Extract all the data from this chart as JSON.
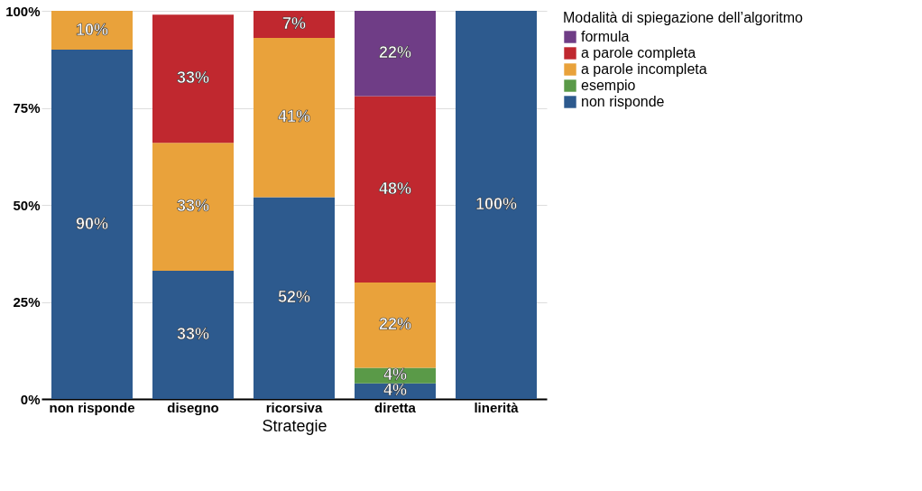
{
  "chart_data": {
    "type": "bar",
    "stacked": true,
    "xlabel": "Strategie",
    "legend_title": "Modalità di spiegazione dell’algoritmo",
    "categories": [
      "non risponde",
      "disegno",
      "ricorsiva",
      "diretta",
      "linerità"
    ],
    "series": [
      {
        "name": "non risponde",
        "color": "#2d5a8e",
        "values": [
          90,
          33,
          52,
          4,
          100
        ],
        "value_labels": [
          "90%",
          "33%",
          "52%",
          "4%",
          "100%"
        ]
      },
      {
        "name": "esempio",
        "color": "#5a9a48",
        "values": [
          null,
          null,
          null,
          4,
          null
        ],
        "value_labels": [
          null,
          null,
          null,
          "4%",
          null
        ]
      },
      {
        "name": "a parole incompleta",
        "color": "#e9a23b",
        "values": [
          10,
          33,
          41,
          22,
          null
        ],
        "value_labels": [
          "10%",
          "33%",
          "41%",
          "22%",
          null
        ]
      },
      {
        "name": "a parole completa",
        "color": "#c0282f",
        "values": [
          null,
          33,
          7,
          48,
          null
        ],
        "value_labels": [
          null,
          "33%",
          "7%",
          "48%",
          null
        ]
      },
      {
        "name": "formula",
        "color": "#6f3d86",
        "values": [
          null,
          null,
          null,
          22,
          null
        ],
        "value_labels": [
          null,
          null,
          null,
          "22%",
          null
        ]
      }
    ],
    "ylim": [
      0,
      100
    ],
    "yticks": [
      {
        "value": 0,
        "label": "0%"
      },
      {
        "value": 25,
        "label": "25%"
      },
      {
        "value": 50,
        "label": "50%"
      },
      {
        "value": 75,
        "label": "75%"
      },
      {
        "value": 100,
        "label": "100%"
      }
    ],
    "grid": "y",
    "legend": "right"
  }
}
